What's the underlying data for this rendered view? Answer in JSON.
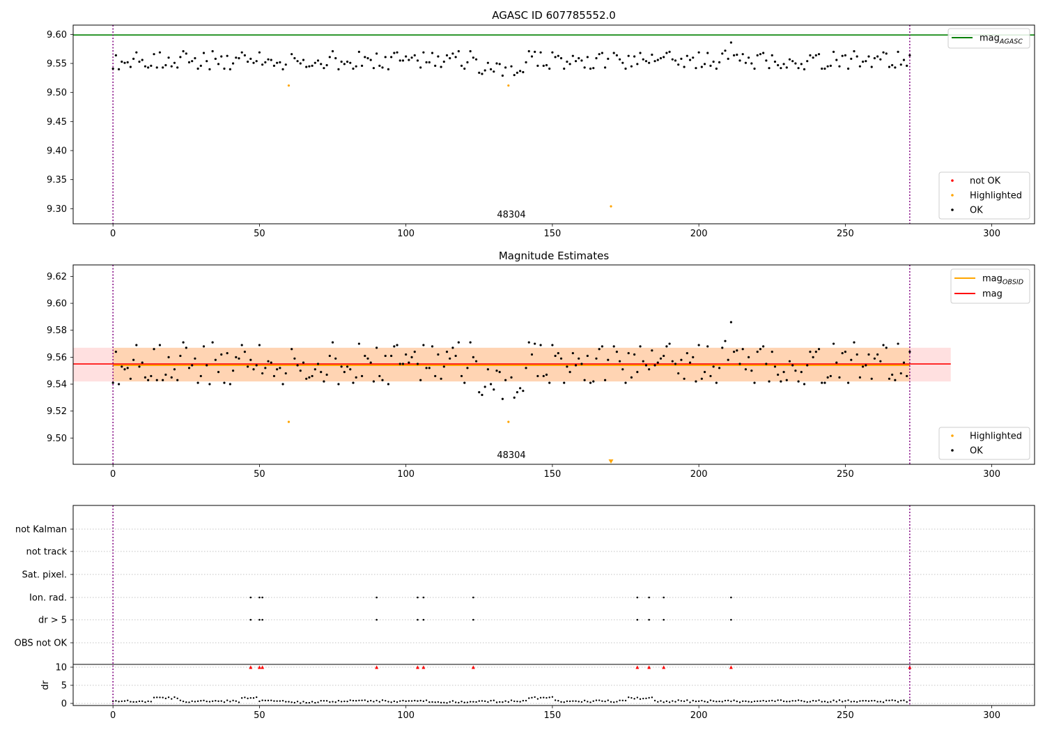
{
  "chart_data": [
    {
      "type": "scatter",
      "title": "AGASC ID 607785552.0",
      "xlim": [
        -13.6,
        314.6
      ],
      "ylim": [
        9.274,
        9.616
      ],
      "xticks": [
        0,
        50,
        100,
        150,
        200,
        250,
        300
      ],
      "yticks": [
        9.3,
        9.35,
        9.4,
        9.45,
        9.5,
        9.55,
        9.6
      ],
      "ytick_labels": [
        "9.30",
        "9.35",
        "9.40",
        "9.45",
        "9.50",
        "9.55",
        "9.60"
      ],
      "reference_lines": [
        {
          "name": "mag_AGASC",
          "y": 9.599,
          "color": "#008000"
        }
      ],
      "obsid_boundaries": [
        0,
        272
      ],
      "obsid_annotation": {
        "text": "48304",
        "x": 136
      },
      "highlighted_points": [
        {
          "x": 60,
          "y": 9.512
        },
        {
          "x": 135,
          "y": 9.512
        },
        {
          "x": 170,
          "y": 9.304
        }
      ],
      "ok_series": {
        "name": "OK",
        "color": "#000000"
      },
      "legend": {
        "placement": "upper-right and lower-right",
        "lines": [
          {
            "label": "mag",
            "sub": "AGASC",
            "color": "#008000"
          }
        ],
        "markers": [
          {
            "label": "not OK",
            "color": "#ff0000"
          },
          {
            "label": "Highlighted",
            "color": "#ffa500"
          },
          {
            "label": "OK",
            "color": "#000000"
          }
        ]
      }
    },
    {
      "type": "scatter",
      "title": "Magnitude Estimates",
      "xlim": [
        -13.6,
        314.6
      ],
      "ylim": [
        9.4805,
        9.6285
      ],
      "xticks": [
        0,
        50,
        100,
        150,
        200,
        250,
        300
      ],
      "yticks": [
        9.5,
        9.52,
        9.54,
        9.56,
        9.58,
        9.6,
        9.62
      ],
      "ytick_labels": [
        "9.50",
        "9.52",
        "9.54",
        "9.56",
        "9.58",
        "9.60",
        "9.62"
      ],
      "mag": 9.555,
      "mag_obsid": 9.554,
      "mag_band": [
        9.542,
        9.567
      ],
      "mag_obsid_band": [
        9.542,
        9.567
      ],
      "band_x_range": [
        -13.6,
        286
      ],
      "obsid_boundaries": [
        0,
        272
      ],
      "obsid_annotation": {
        "text": "48304",
        "x": 136
      },
      "highlighted_points": [
        {
          "x": 60,
          "y": 9.512
        },
        {
          "x": 135,
          "y": 9.512
        }
      ],
      "off_axis_marker": {
        "x": 170,
        "direction": "down",
        "color": "#ffa500"
      },
      "legend": {
        "placement": "upper-right and lower-right",
        "lines": [
          {
            "label": "mag",
            "sub": "OBSID",
            "color": "#ffa500"
          },
          {
            "label": "mag",
            "sub": "",
            "color": "#ff0000"
          }
        ],
        "markers": [
          {
            "label": "Highlighted",
            "color": "#ffa500"
          },
          {
            "label": "OK",
            "color": "#000000"
          }
        ]
      }
    },
    {
      "type": "scatter",
      "xlim": [
        -13.6,
        314.6
      ],
      "xticks": [
        0,
        50,
        100,
        150,
        200,
        250,
        300
      ],
      "flag_rows": [
        "not Kalman",
        "not track",
        "Sat. pixel.",
        "Ion. rad.",
        "dr > 5",
        "OBS not OK"
      ],
      "flag_points": {
        "Ion. rad.": [
          47,
          50,
          51,
          90,
          104,
          106,
          123,
          179,
          183,
          188,
          211
        ],
        "dr > 5": [
          47,
          50,
          51,
          90,
          104,
          106,
          123,
          179,
          183,
          188,
          211
        ]
      },
      "dr_ylabel": "dr",
      "dr_ylim": [
        -0.5,
        10.5
      ],
      "dr_yticks": [
        0,
        5,
        10
      ],
      "dr_ytick_labels": [
        "0",
        "5",
        "10"
      ],
      "dr_capped_markers": {
        "x": [
          47,
          50,
          51,
          90,
          104,
          106,
          123,
          179,
          183,
          188,
          211,
          272
        ],
        "y": 10,
        "color": "#ff0000"
      },
      "obsid_boundaries": [
        0,
        272
      ]
    }
  ]
}
